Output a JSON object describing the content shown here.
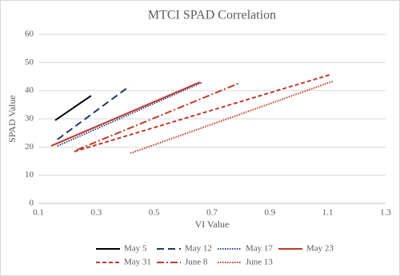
{
  "chart_data": {
    "type": "line",
    "title": "MTCI SPAD Correlation",
    "xlabel": "VI Value",
    "ylabel": "SPAD Value",
    "xlim": [
      0.1,
      1.3
    ],
    "xticks": [
      0.1,
      0.3,
      0.5,
      0.7,
      0.9,
      1.1,
      1.3
    ],
    "ylim": [
      0,
      60
    ],
    "yticks": [
      0,
      10,
      20,
      30,
      40,
      50,
      60
    ],
    "grid": true,
    "legend": "bottom",
    "series": [
      {
        "name": "May 5",
        "color": "#000000",
        "dash": "solid",
        "x": [
          0.158,
          0.282
        ],
        "values": [
          29.5,
          38.2
        ]
      },
      {
        "name": "May 12",
        "color": "#1f3864",
        "dash": "longdash",
        "x": [
          0.166,
          0.415
        ],
        "values": [
          22.7,
          41.6
        ]
      },
      {
        "name": "May 17",
        "color": "#2e3f8f",
        "dash": "dot",
        "x": [
          0.166,
          0.667
        ],
        "values": [
          20.4,
          43
        ]
      },
      {
        "name": "May 23",
        "color": "#c0392b",
        "dash": "solid",
        "x": [
          0.144,
          0.658
        ],
        "values": [
          20.4,
          43
        ]
      },
      {
        "name": "May 31",
        "color": "#c0392b",
        "dash": "dash",
        "x": [
          0.224,
          1.106
        ],
        "values": [
          18.4,
          45.6
        ]
      },
      {
        "name": "June 8",
        "color": "#c0392b",
        "dash": "dashdot",
        "x": [
          0.233,
          0.797
        ],
        "values": [
          19,
          42.8
        ]
      },
      {
        "name": "June 13",
        "color": "#c0392b",
        "dash": "dot",
        "x": [
          0.418,
          1.117
        ],
        "values": [
          17.8,
          43.3
        ]
      }
    ]
  }
}
